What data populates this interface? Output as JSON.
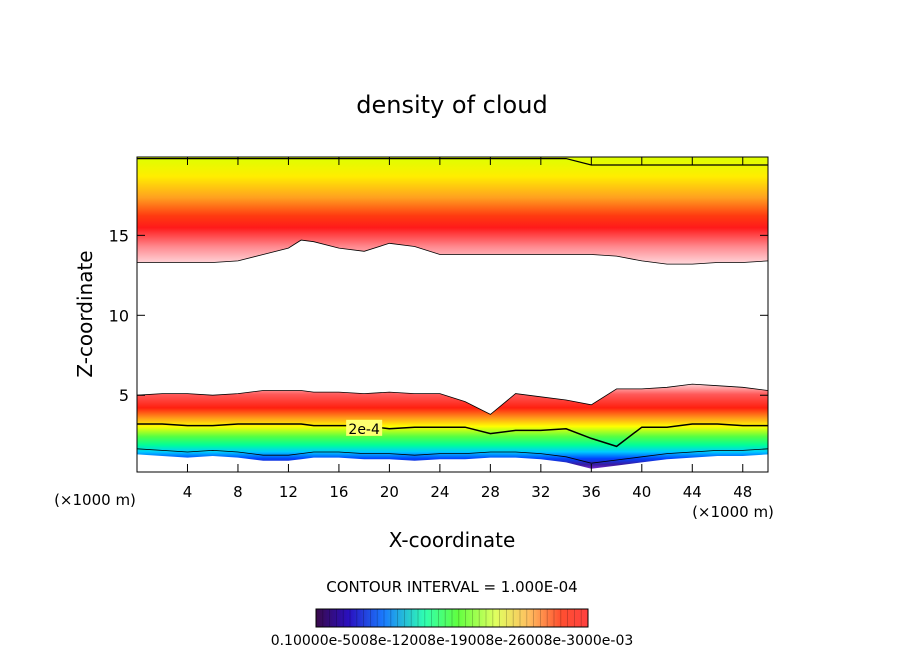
{
  "chart_data": {
    "type": "heatmap",
    "title": "density of cloud",
    "xlabel": "X-coordinate",
    "ylabel": "Z-coordinate",
    "x_unit": "(×1000 m)",
    "xlim": [
      0,
      50
    ],
    "ylim": [
      0.2,
      19.9
    ],
    "x_ticks": [
      4,
      8,
      12,
      16,
      20,
      24,
      28,
      32,
      36,
      40,
      44,
      48
    ],
    "y_ticks": [
      5,
      10,
      15
    ],
    "contour_interval_label": "CONTOUR INTERVAL = 1.000E-04",
    "contour_label": "2e-4",
    "colorbar_labels_text": "0.10000e-5008e-12008e-19008e-26008e-3000e-03",
    "bands": {
      "x": [
        0,
        2,
        4,
        6,
        8,
        10,
        12,
        13,
        14,
        16,
        18,
        20,
        22,
        24,
        26,
        28,
        30,
        32,
        34,
        36,
        38,
        40,
        42,
        44,
        46,
        48,
        50
      ],
      "upper_cloud_base_z": [
        13.3,
        13.3,
        13.3,
        13.3,
        13.4,
        13.8,
        14.2,
        14.7,
        14.6,
        14.2,
        14.0,
        14.5,
        14.3,
        13.8,
        13.8,
        13.8,
        13.8,
        13.8,
        13.8,
        13.8,
        13.7,
        13.4,
        13.2,
        13.2,
        13.3,
        13.3,
        13.4
      ],
      "upper_cloud_peak_z": [
        15.3,
        15.4,
        15.5,
        15.4,
        15.6,
        16.0,
        16.7,
        16.5,
        16.2,
        15.9,
        15.8,
        16.0,
        15.8,
        15.5,
        15.5,
        15.5,
        15.4,
        15.5,
        15.4,
        15.4,
        15.4,
        15.4,
        15.3,
        15.3,
        15.3,
        15.3,
        15.3
      ],
      "lower_cloud_top_z": [
        5.0,
        5.1,
        5.1,
        5.0,
        5.1,
        5.3,
        5.3,
        5.3,
        5.2,
        5.2,
        5.1,
        5.2,
        5.1,
        5.1,
        4.6,
        3.8,
        5.1,
        4.9,
        4.7,
        4.4,
        5.4,
        5.4,
        5.5,
        5.7,
        5.6,
        5.5,
        5.3
      ],
      "contour_2e4_z": [
        3.2,
        3.2,
        3.1,
        3.1,
        3.2,
        3.2,
        3.2,
        3.2,
        3.1,
        3.1,
        3.1,
        2.9,
        3.0,
        3.0,
        3.0,
        2.6,
        2.8,
        2.8,
        2.9,
        2.3,
        1.8,
        3.0,
        3.0,
        3.2,
        3.2,
        3.1,
        3.1
      ],
      "lower_cloud_base_z": [
        1.3,
        1.2,
        1.1,
        1.2,
        1.1,
        0.9,
        0.9,
        1.0,
        1.1,
        1.1,
        1.0,
        1.0,
        0.9,
        1.0,
        1.0,
        1.1,
        1.1,
        1.0,
        0.8,
        0.4,
        0.6,
        0.8,
        1.0,
        1.1,
        1.2,
        1.2,
        1.3
      ]
    },
    "colors": {
      "max": "#ff0000",
      "high": "#ff7a1a",
      "mid": "#ffff00",
      "mid_low": "#00ff66",
      "low": "#0033ff",
      "min": "#5a2a9a",
      "edge": "#ffe8ec"
    }
  }
}
